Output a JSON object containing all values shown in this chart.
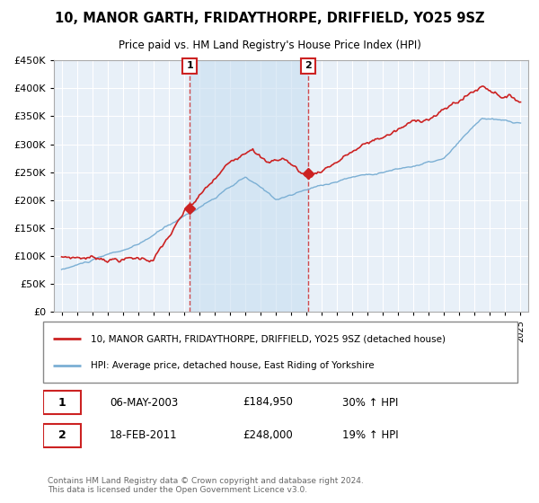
{
  "title": "10, MANOR GARTH, FRIDAYTHORPE, DRIFFIELD, YO25 9SZ",
  "subtitle": "Price paid vs. HM Land Registry's House Price Index (HPI)",
  "legend_line1": "10, MANOR GARTH, FRIDAYTHORPE, DRIFFIELD, YO25 9SZ (detached house)",
  "legend_line2": "HPI: Average price, detached house, East Riding of Yorkshire",
  "transaction1_date": "06-MAY-2003",
  "transaction1_price": "£184,950",
  "transaction1_hpi": "30% ↑ HPI",
  "transaction1_year": 2003.37,
  "transaction1_value": 184950,
  "transaction2_date": "18-FEB-2011",
  "transaction2_price": "£248,000",
  "transaction2_hpi": "19% ↑ HPI",
  "transaction2_year": 2011.12,
  "transaction2_value": 248000,
  "footer": "Contains HM Land Registry data © Crown copyright and database right 2024.\nThis data is licensed under the Open Government Licence v3.0.",
  "hpi_color": "#7bafd4",
  "price_color": "#cc2222",
  "marker_color": "#cc2222",
  "shade_color": "#c8dff0",
  "ylim": [
    0,
    450000
  ],
  "yticks": [
    0,
    50000,
    100000,
    150000,
    200000,
    250000,
    300000,
    350000,
    400000,
    450000
  ],
  "plot_bg_color": "#e8f0f8",
  "fig_bg_color": "#ffffff"
}
